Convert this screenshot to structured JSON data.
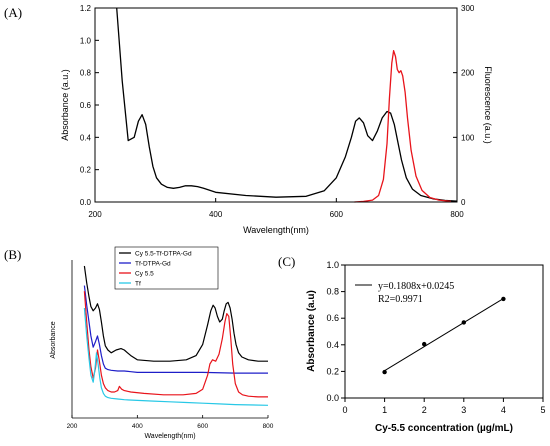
{
  "panels": {
    "a": "(A)",
    "b": "(B)",
    "c": "(C)"
  },
  "chart_data": [
    {
      "type": "line",
      "xlabel": "Wavelength(nm)",
      "ylabel": "Absorbance (a.u.)",
      "y2label": "Fluorescence (a.u.)",
      "xlim": [
        200,
        800
      ],
      "ylim": [
        0,
        1.2
      ],
      "y2lim": [
        0,
        300
      ],
      "xticks": [
        "200",
        "400",
        "600",
        "800"
      ],
      "yticks": [
        "0.0",
        "0.2",
        "0.4",
        "0.6",
        "0.8",
        "1.0",
        "1.2"
      ],
      "y2ticks": [
        "0",
        "100",
        "200",
        "300"
      ],
      "colors": {
        "absorbance": "#000000",
        "fluorescence": "#e8141b"
      },
      "series": [
        {
          "axis": "left",
          "color": "#000000",
          "x": [
            236,
            245,
            255,
            265,
            272,
            278,
            284,
            290,
            296,
            302,
            310,
            320,
            330,
            340,
            350,
            360,
            370,
            380,
            400,
            450,
            500,
            550,
            580,
            600,
            615,
            625,
            632,
            638,
            645,
            652,
            660,
            668,
            676,
            684,
            690,
            696,
            702,
            708,
            716,
            726,
            740,
            760,
            780,
            800
          ],
          "y": [
            1.2,
            0.75,
            0.38,
            0.4,
            0.5,
            0.54,
            0.48,
            0.34,
            0.22,
            0.15,
            0.11,
            0.09,
            0.085,
            0.09,
            0.1,
            0.1,
            0.095,
            0.085,
            0.06,
            0.04,
            0.03,
            0.035,
            0.07,
            0.15,
            0.28,
            0.4,
            0.5,
            0.52,
            0.49,
            0.41,
            0.38,
            0.44,
            0.52,
            0.56,
            0.55,
            0.48,
            0.37,
            0.26,
            0.15,
            0.08,
            0.04,
            0.02,
            0.01,
            0.005
          ]
        },
        {
          "axis": "right",
          "color": "#e8141b",
          "x": [
            630,
            645,
            660,
            670,
            678,
            684,
            688,
            692,
            695,
            698,
            701,
            704,
            707,
            710,
            714,
            718,
            724,
            732,
            742,
            755,
            770,
            790
          ],
          "y": [
            0,
            1,
            3,
            10,
            35,
            90,
            160,
            215,
            234,
            225,
            205,
            200,
            203,
            195,
            170,
            130,
            80,
            40,
            18,
            7,
            3,
            1
          ]
        }
      ]
    },
    {
      "type": "line",
      "xlabel": "Wavelength(nm)",
      "ylabel": "Absorbance",
      "xlim": [
        200,
        800
      ],
      "xticks": [
        "200",
        "400",
        "600",
        "800"
      ],
      "legend_position": "top-left",
      "series": [
        {
          "name": "Cy 5.5-Tf-DTPA-Gd",
          "color": "#000000",
          "x": [
            238,
            245,
            252,
            258,
            265,
            272,
            278,
            284,
            290,
            296,
            302,
            310,
            320,
            335,
            350,
            360,
            370,
            380,
            400,
            450,
            500,
            550,
            580,
            600,
            615,
            625,
            632,
            638,
            645,
            652,
            660,
            666,
            672,
            678,
            684,
            690,
            696,
            702,
            710,
            720,
            740,
            770,
            800
          ],
          "y": [
            1.0,
            0.88,
            0.78,
            0.71,
            0.68,
            0.7,
            0.73,
            0.69,
            0.6,
            0.5,
            0.43,
            0.4,
            0.38,
            0.4,
            0.41,
            0.4,
            0.38,
            0.36,
            0.33,
            0.32,
            0.32,
            0.33,
            0.36,
            0.44,
            0.58,
            0.68,
            0.72,
            0.7,
            0.64,
            0.6,
            0.62,
            0.68,
            0.73,
            0.74,
            0.7,
            0.62,
            0.52,
            0.44,
            0.38,
            0.35,
            0.33,
            0.32,
            0.32
          ]
        },
        {
          "name": "Tf-DTPA-Gd",
          "color": "#1e1ec8",
          "x": [
            238,
            245,
            252,
            258,
            265,
            272,
            278,
            284,
            290,
            296,
            302,
            310,
            320,
            340,
            360,
            380,
            400,
            500,
            600,
            700,
            800
          ],
          "y": [
            0.86,
            0.72,
            0.6,
            0.5,
            0.42,
            0.46,
            0.5,
            0.44,
            0.36,
            0.3,
            0.27,
            0.26,
            0.255,
            0.25,
            0.25,
            0.245,
            0.24,
            0.24,
            0.24,
            0.235,
            0.235
          ]
        },
        {
          "name": "Cy 5.5",
          "color": "#e8141b",
          "x": [
            238,
            245,
            252,
            258,
            265,
            272,
            278,
            284,
            290,
            296,
            302,
            310,
            320,
            330,
            340,
            345,
            352,
            360,
            380,
            420,
            480,
            540,
            580,
            600,
            615,
            622,
            630,
            640,
            650,
            660,
            668,
            674,
            680,
            686,
            692,
            700,
            710,
            722,
            740,
            770,
            800
          ],
          "y": [
            0.82,
            0.6,
            0.4,
            0.28,
            0.2,
            0.27,
            0.4,
            0.32,
            0.22,
            0.16,
            0.13,
            0.11,
            0.1,
            0.1,
            0.11,
            0.14,
            0.12,
            0.11,
            0.1,
            0.09,
            0.08,
            0.08,
            0.09,
            0.12,
            0.22,
            0.3,
            0.33,
            0.32,
            0.37,
            0.48,
            0.6,
            0.66,
            0.64,
            0.48,
            0.3,
            0.16,
            0.1,
            0.08,
            0.07,
            0.065,
            0.065
          ]
        },
        {
          "name": "Tf",
          "color": "#28c8e6",
          "x": [
            238,
            245,
            252,
            258,
            265,
            270,
            275,
            280,
            285,
            290,
            296,
            302,
            310,
            320,
            340,
            360,
            400,
            450,
            500,
            550,
            600,
            650,
            700,
            800
          ],
          "y": [
            0.7,
            0.5,
            0.34,
            0.22,
            0.17,
            0.26,
            0.38,
            0.3,
            0.2,
            0.13,
            0.09,
            0.07,
            0.06,
            0.055,
            0.05,
            0.045,
            0.04,
            0.035,
            0.03,
            0.025,
            0.02,
            0.015,
            0.01,
            0.005
          ]
        }
      ]
    },
    {
      "type": "scatter",
      "xlabel": "Cy-5.5 concentration (µg/mL)",
      "ylabel": "Absorbance (a.u)",
      "xlim": [
        0,
        5
      ],
      "ylim": [
        0,
        1.0
      ],
      "xticks": [
        "0",
        "1",
        "2",
        "3",
        "4",
        "5"
      ],
      "yticks": [
        "0.0",
        "0.2",
        "0.4",
        "0.6",
        "0.8",
        "1.0"
      ],
      "points": {
        "x": [
          1,
          2,
          3,
          4
        ],
        "y": [
          0.195,
          0.405,
          0.568,
          0.745
        ]
      },
      "fit": {
        "slope": 0.1808,
        "intercept": 0.0245,
        "x": [
          1,
          4
        ]
      },
      "legend": {
        "equation": "y=0.1808x+0.0245",
        "r2": "R2=0.9971"
      }
    }
  ]
}
